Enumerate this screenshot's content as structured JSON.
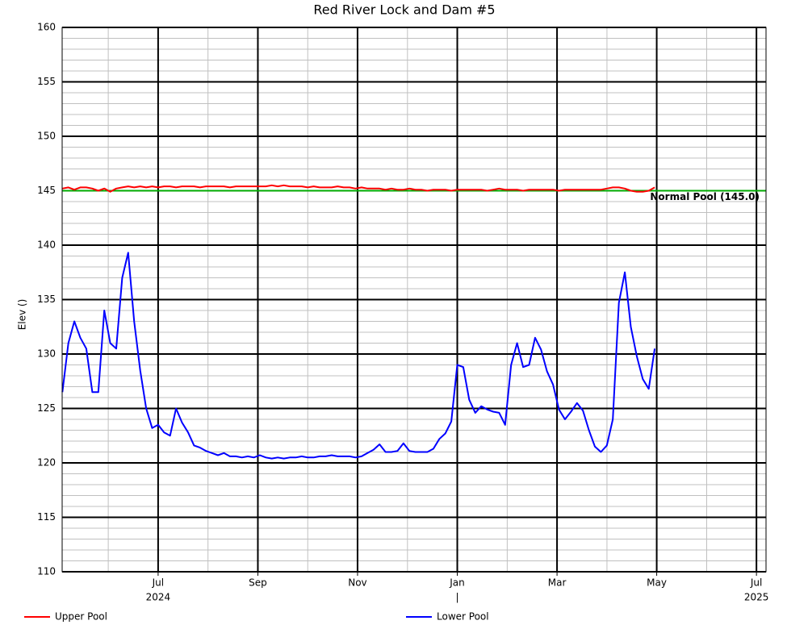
{
  "chart_data": {
    "type": "line",
    "title": "Red River Lock and Dam #5",
    "ylabel": "Elev ()",
    "xlim": [
      2024.3396,
      2025.516
    ],
    "ylim": [
      110,
      160
    ],
    "yticks": [
      110,
      115,
      120,
      125,
      130,
      135,
      140,
      145,
      150,
      155,
      160
    ],
    "xticks": [
      {
        "value": 2024.5,
        "label": "Jul"
      },
      {
        "value": 2024.6667,
        "label": "Sep"
      },
      {
        "value": 2024.8333,
        "label": "Nov"
      },
      {
        "value": 2025.0,
        "label": "Jan"
      },
      {
        "value": 2025.1667,
        "label": "Mar"
      },
      {
        "value": 2025.3333,
        "label": "May"
      },
      {
        "value": 2025.5,
        "label": "Jul"
      }
    ],
    "x_year_labels": [
      {
        "value": 2024.5,
        "label": "2024"
      },
      {
        "value": 2025.0,
        "label": "|"
      },
      {
        "value": 2025.5,
        "label": "2025"
      }
    ],
    "grid": true,
    "reference_line": {
      "value": 145.0,
      "label": "Normal Pool (145.0)",
      "color": "#00aa00"
    },
    "x": [
      2024.34,
      2024.35,
      2024.36,
      2024.37,
      2024.38,
      2024.39,
      2024.4,
      2024.41,
      2024.42,
      2024.43,
      2024.44,
      2024.45,
      2024.46,
      2024.47,
      2024.48,
      2024.49,
      2024.5,
      2024.51,
      2024.52,
      2024.53,
      2024.54,
      2024.55,
      2024.56,
      2024.57,
      2024.58,
      2024.59,
      2024.6,
      2024.61,
      2024.62,
      2024.63,
      2024.64,
      2024.65,
      2024.66,
      2024.67,
      2024.68,
      2024.69,
      2024.7,
      2024.71,
      2024.72,
      2024.73,
      2024.74,
      2024.75,
      2024.76,
      2024.77,
      2024.78,
      2024.79,
      2024.8,
      2024.81,
      2024.82,
      2024.83,
      2024.84,
      2024.85,
      2024.86,
      2024.87,
      2024.88,
      2024.89,
      2024.9,
      2024.91,
      2024.92,
      2024.93,
      2024.94,
      2024.95,
      2024.96,
      2024.97,
      2024.98,
      2024.99,
      2025.0,
      2025.01,
      2025.02,
      2025.03,
      2025.04,
      2025.05,
      2025.06,
      2025.07,
      2025.08,
      2025.09,
      2025.1,
      2025.11,
      2025.12,
      2025.13,
      2025.14,
      2025.15,
      2025.16,
      2025.17,
      2025.18,
      2025.19,
      2025.2,
      2025.21,
      2025.22,
      2025.23,
      2025.24,
      2025.25,
      2025.26,
      2025.27,
      2025.28,
      2025.29,
      2025.3,
      2025.31,
      2025.32,
      2025.33
    ],
    "series": [
      {
        "name": "Upper Pool",
        "color": "#ff0000",
        "values": [
          145.2,
          145.3,
          145.1,
          145.3,
          145.3,
          145.2,
          145.0,
          145.2,
          144.9,
          145.2,
          145.3,
          145.4,
          145.3,
          145.4,
          145.3,
          145.4,
          145.3,
          145.4,
          145.4,
          145.3,
          145.4,
          145.4,
          145.4,
          145.3,
          145.4,
          145.4,
          145.4,
          145.4,
          145.3,
          145.4,
          145.4,
          145.4,
          145.4,
          145.4,
          145.4,
          145.5,
          145.4,
          145.5,
          145.4,
          145.4,
          145.4,
          145.3,
          145.4,
          145.3,
          145.3,
          145.3,
          145.4,
          145.3,
          145.3,
          145.2,
          145.3,
          145.2,
          145.2,
          145.2,
          145.1,
          145.2,
          145.1,
          145.1,
          145.2,
          145.1,
          145.1,
          145.0,
          145.1,
          145.1,
          145.1,
          145.0,
          145.1,
          145.1,
          145.1,
          145.1,
          145.1,
          145.0,
          145.1,
          145.2,
          145.1,
          145.1,
          145.1,
          145.0,
          145.1,
          145.1,
          145.1,
          145.1,
          145.1,
          145.0,
          145.1,
          145.1,
          145.1,
          145.1,
          145.1,
          145.1,
          145.1,
          145.2,
          145.3,
          145.3,
          145.2,
          145.0,
          144.9,
          144.9,
          145.0,
          145.3
        ]
      },
      {
        "name": "Lower Pool",
        "color": "#0000ff",
        "values": [
          126.5,
          131,
          133,
          131.5,
          130.5,
          126.5,
          126.5,
          134,
          131,
          130.5,
          137,
          139.3,
          133,
          128.5,
          125,
          123.2,
          123.5,
          122.8,
          122.5,
          125,
          123.7,
          122.8,
          121.6,
          121.4,
          121.1,
          120.9,
          120.7,
          120.9,
          120.6,
          120.6,
          120.5,
          120.6,
          120.5,
          120.7,
          120.5,
          120.4,
          120.5,
          120.4,
          120.5,
          120.5,
          120.6,
          120.5,
          120.5,
          120.6,
          120.6,
          120.7,
          120.6,
          120.6,
          120.6,
          120.5,
          120.6,
          120.9,
          121.2,
          121.7,
          121,
          121,
          121.1,
          121.8,
          121.1,
          121,
          121,
          121,
          121.3,
          122.2,
          122.7,
          123.8,
          129,
          128.8,
          125.8,
          124.6,
          125.2,
          124.9,
          124.7,
          124.6,
          123.5,
          129,
          131,
          128.8,
          129,
          131.5,
          130.4,
          128.4,
          127.2,
          124.9,
          124,
          124.7,
          125.5,
          124.8,
          123,
          121.5,
          121,
          121.6,
          124,
          134.7,
          137.5,
          132.5,
          129.8,
          127.7,
          126.8,
          130.5
        ]
      }
    ]
  }
}
